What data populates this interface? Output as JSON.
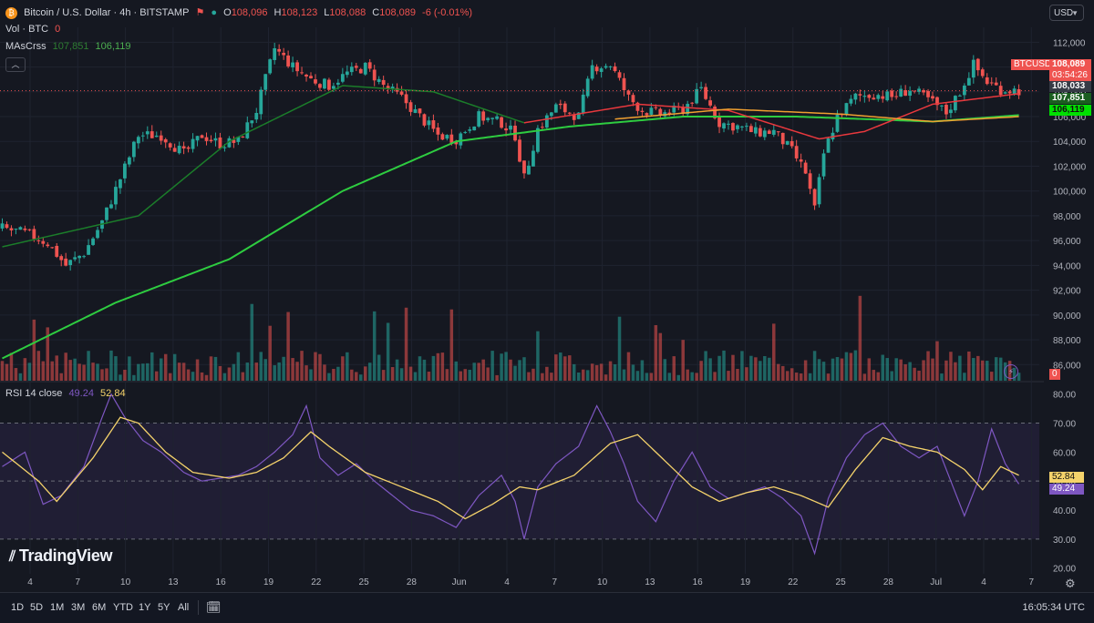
{
  "header": {
    "symbol_title": "Bitcoin / U.S. Dollar · 4h · BITSTAMP",
    "ohlc": {
      "o_label": "O",
      "o": "108,096",
      "h_label": "H",
      "h": "108,123",
      "l_label": "L",
      "l": "108,088",
      "c_label": "C",
      "c": "108,089",
      "change": "-6 (-0.01%)"
    },
    "currency": "USD",
    "vol_label": "Vol · BTC",
    "vol_value": "0",
    "ma_label": "MAsCrss",
    "ma_fast": "107,851",
    "ma_slow": "106,119",
    "rsi_label": "RSI 14 close",
    "rsi_value": "49.24",
    "rsi_ma_value": "52.84"
  },
  "price_labels": {
    "symbol_tag": "BTCUSD",
    "last": "108,089",
    "countdown": "03:54:26",
    "hover": "108,033",
    "ma_fast": "107,851",
    "ma_slow": "106,119",
    "volume_tag": "0",
    "rsi_ma": "52.84",
    "rsi": "49.24"
  },
  "logo_text": "TradingView",
  "timeframes": [
    "1D",
    "5D",
    "1M",
    "3M",
    "6M",
    "YTD",
    "1Y",
    "5Y",
    "All"
  ],
  "clock": "16:05:34 UTC",
  "colors": {
    "bg": "#151821",
    "up": "#26a69a",
    "down": "#ef5350",
    "ma_fast_red": "#e8383d",
    "ma_slow_green": "#2ecc40",
    "ma_orange": "#f0a030",
    "rsi_line": "#7e57c2",
    "rsi_ma": "#f5d36b",
    "rsi_band": "#2a2445",
    "grid": "#1f2330"
  },
  "chart_data": [
    {
      "type": "candlestick",
      "title": "Bitcoin / U.S. Dollar · 4h · BITSTAMP",
      "x_ticks": [
        "4",
        "7",
        "10",
        "13",
        "16",
        "19",
        "22",
        "25",
        "28",
        "Jun",
        "4",
        "7",
        "10",
        "13",
        "16",
        "19",
        "22",
        "25",
        "28",
        "Jul",
        "4",
        "7"
      ],
      "y_ticks": [
        86000,
        88000,
        90000,
        92000,
        94000,
        96000,
        98000,
        100000,
        102000,
        104000,
        106000,
        108000,
        110000,
        112000
      ],
      "ylim": [
        84700,
        113200
      ],
      "close_path": [
        [
          0,
          97000
        ],
        [
          6,
          96500
        ],
        [
          10,
          95800
        ],
        [
          14,
          94000
        ],
        [
          18,
          95000
        ],
        [
          22,
          97500
        ],
        [
          26,
          101000
        ],
        [
          30,
          104500
        ],
        [
          35,
          104500
        ],
        [
          40,
          103000
        ],
        [
          44,
          104500
        ],
        [
          48,
          103800
        ],
        [
          52,
          104000
        ],
        [
          56,
          106500
        ],
        [
          60,
          111500
        ],
        [
          64,
          110000
        ],
        [
          68,
          109000
        ],
        [
          72,
          108500
        ],
        [
          76,
          109500
        ],
        [
          80,
          110000
        ],
        [
          84,
          108500
        ],
        [
          88,
          107500
        ],
        [
          92,
          106000
        ],
        [
          96,
          104500
        ],
        [
          100,
          104200
        ],
        [
          105,
          106000
        ],
        [
          110,
          105500
        ],
        [
          113,
          104500
        ],
        [
          115,
          101000
        ],
        [
          118,
          105000
        ],
        [
          122,
          106800
        ],
        [
          127,
          106000
        ],
        [
          130,
          110000
        ],
        [
          134,
          110200
        ],
        [
          138,
          107500
        ],
        [
          141,
          106500
        ],
        [
          145,
          106200
        ],
        [
          150,
          106600
        ],
        [
          154,
          108200
        ],
        [
          158,
          105500
        ],
        [
          162,
          105200
        ],
        [
          166,
          104700
        ],
        [
          170,
          104800
        ],
        [
          174,
          103200
        ],
        [
          177,
          101500
        ],
        [
          179,
          98500
        ],
        [
          181,
          103000
        ],
        [
          184,
          106000
        ],
        [
          188,
          107600
        ],
        [
          192,
          107800
        ],
        [
          196,
          107600
        ],
        [
          200,
          108200
        ],
        [
          204,
          107400
        ],
        [
          208,
          106300
        ],
        [
          211,
          108000
        ],
        [
          214,
          110200
        ],
        [
          217,
          108800
        ],
        [
          220,
          108200
        ],
        [
          224,
          108100
        ]
      ],
      "ma_fast_path": [
        [
          0,
          95500
        ],
        [
          30,
          98000
        ],
        [
          50,
          104000
        ],
        [
          75,
          108500
        ],
        [
          95,
          108000
        ],
        [
          115,
          105500
        ],
        [
          140,
          107000
        ],
        [
          160,
          106500
        ],
        [
          180,
          104200
        ],
        [
          190,
          104800
        ],
        [
          205,
          107000
        ],
        [
          224,
          107851
        ]
      ],
      "ma_slow_path": [
        [
          0,
          86500
        ],
        [
          25,
          91000
        ],
        [
          50,
          94500
        ],
        [
          75,
          100000
        ],
        [
          100,
          104000
        ],
        [
          125,
          105200
        ],
        [
          150,
          106000
        ],
        [
          175,
          106000
        ],
        [
          205,
          105600
        ],
        [
          224,
          106119
        ]
      ],
      "volume_scale_max": 100
    },
    {
      "type": "line",
      "title": "RSI 14 close",
      "y_ticks": [
        20,
        30,
        40,
        50,
        60,
        70,
        80
      ],
      "ylim": [
        18,
        84
      ],
      "bands": [
        30,
        70
      ],
      "series": [
        {
          "name": "RSI",
          "path": [
            [
              0,
              55
            ],
            [
              5,
              60
            ],
            [
              9,
              42
            ],
            [
              13,
              45
            ],
            [
              18,
              55
            ],
            [
              22,
              72
            ],
            [
              24,
              80
            ],
            [
              27,
              72
            ],
            [
              31,
              64
            ],
            [
              35,
              60
            ],
            [
              40,
              53
            ],
            [
              44,
              50
            ],
            [
              48,
              51
            ],
            [
              52,
              52
            ],
            [
              56,
              55
            ],
            [
              60,
              60
            ],
            [
              64,
              66
            ],
            [
              67,
              76
            ],
            [
              70,
              58
            ],
            [
              74,
              52
            ],
            [
              78,
              56
            ],
            [
              82,
              50
            ],
            [
              86,
              45
            ],
            [
              90,
              40
            ],
            [
              95,
              38
            ],
            [
              100,
              34
            ],
            [
              105,
              45
            ],
            [
              110,
              52
            ],
            [
              113,
              43
            ],
            [
              115,
              30
            ],
            [
              118,
              48
            ],
            [
              122,
              56
            ],
            [
              127,
              62
            ],
            [
              131,
              76
            ],
            [
              134,
              67
            ],
            [
              137,
              56
            ],
            [
              140,
              43
            ],
            [
              144,
              36
            ],
            [
              148,
              50
            ],
            [
              152,
              60
            ],
            [
              156,
              48
            ],
            [
              160,
              44
            ],
            [
              164,
              46
            ],
            [
              168,
              48
            ],
            [
              172,
              44
            ],
            [
              176,
              38
            ],
            [
              179,
              25
            ],
            [
              182,
              44
            ],
            [
              186,
              58
            ],
            [
              190,
              66
            ],
            [
              194,
              70
            ],
            [
              198,
              62
            ],
            [
              202,
              58
            ],
            [
              206,
              62
            ],
            [
              209,
              50
            ],
            [
              212,
              38
            ],
            [
              215,
              50
            ],
            [
              218,
              68
            ],
            [
              221,
              56
            ],
            [
              224,
              49
            ]
          ]
        },
        {
          "name": "RSI MA",
          "path": [
            [
              0,
              60
            ],
            [
              8,
              50
            ],
            [
              12,
              43
            ],
            [
              20,
              58
            ],
            [
              26,
              72
            ],
            [
              30,
              70
            ],
            [
              36,
              60
            ],
            [
              42,
              53
            ],
            [
              50,
              51
            ],
            [
              56,
              53
            ],
            [
              62,
              58
            ],
            [
              68,
              67
            ],
            [
              72,
              62
            ],
            [
              80,
              53
            ],
            [
              88,
              48
            ],
            [
              96,
              43
            ],
            [
              102,
              37
            ],
            [
              108,
              42
            ],
            [
              114,
              48
            ],
            [
              118,
              47
            ],
            [
              126,
              52
            ],
            [
              134,
              63
            ],
            [
              140,
              66
            ],
            [
              146,
              57
            ],
            [
              152,
              48
            ],
            [
              158,
              43
            ],
            [
              164,
              46
            ],
            [
              170,
              48
            ],
            [
              176,
              45
            ],
            [
              182,
              41
            ],
            [
              188,
              54
            ],
            [
              194,
              65
            ],
            [
              200,
              62
            ],
            [
              206,
              60
            ],
            [
              212,
              54
            ],
            [
              216,
              47
            ],
            [
              220,
              55
            ],
            [
              224,
              52
            ]
          ]
        }
      ]
    }
  ]
}
